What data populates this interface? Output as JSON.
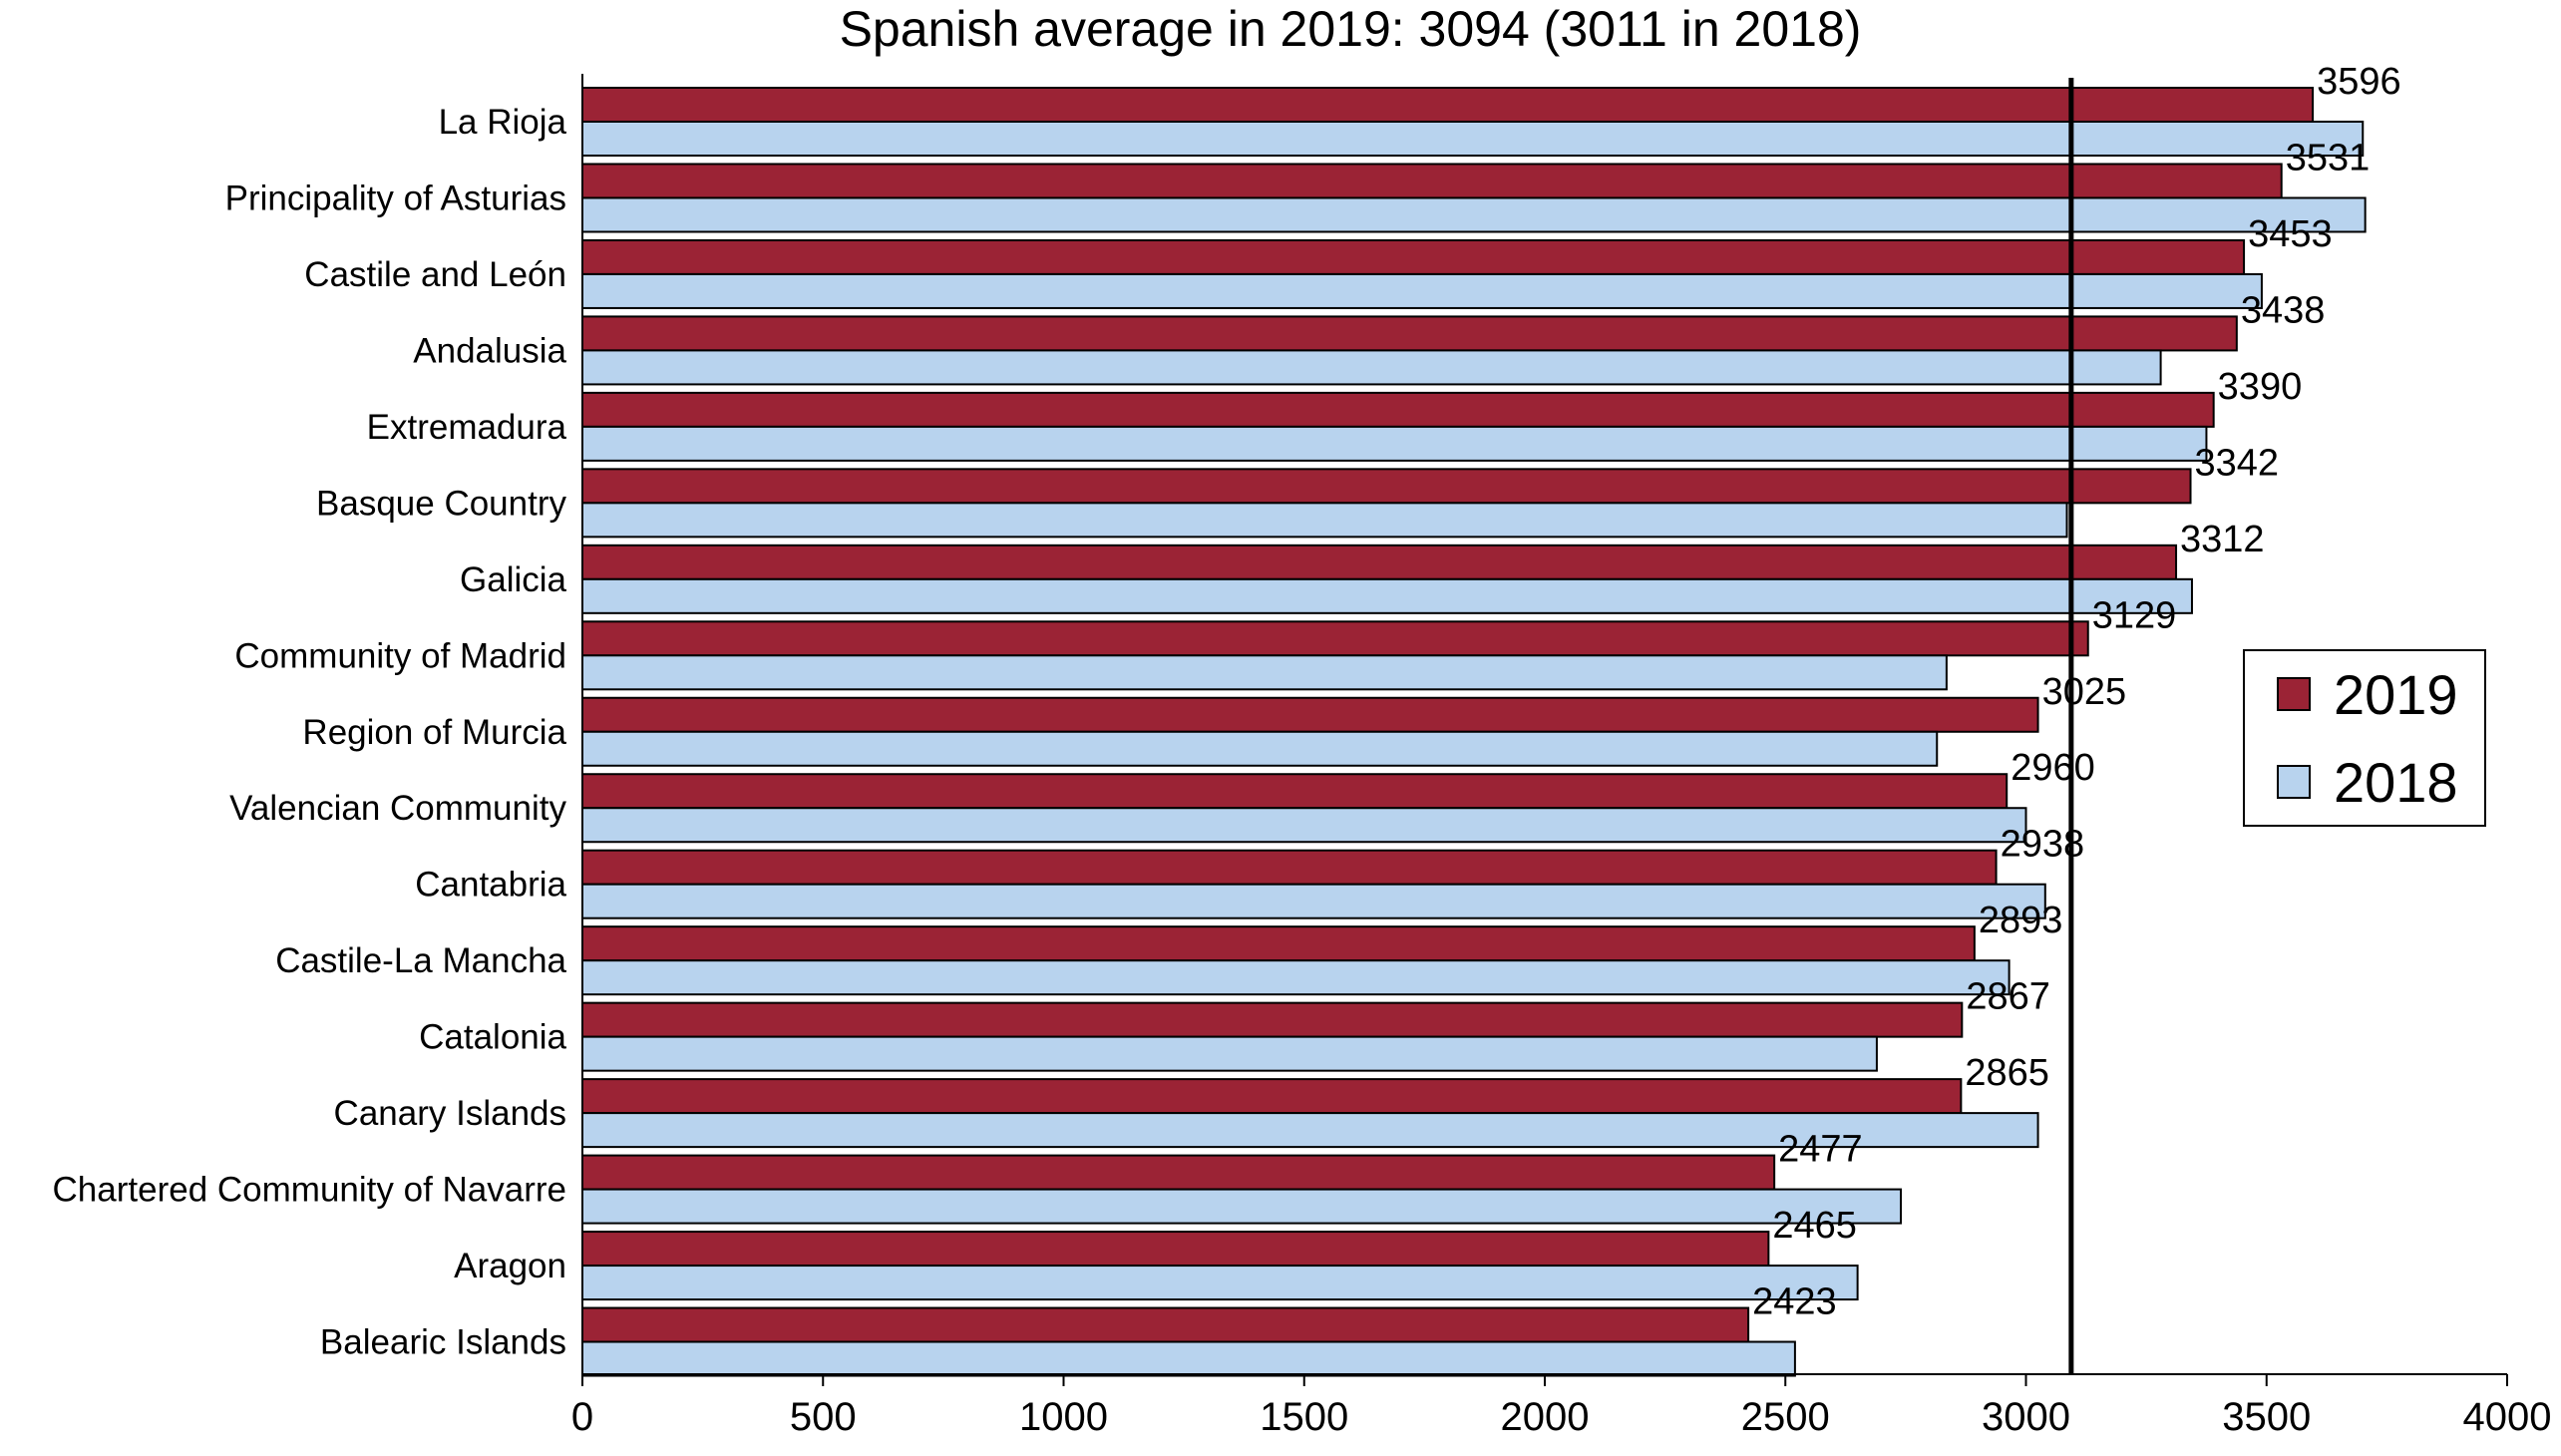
{
  "chart_data": {
    "type": "bar",
    "orientation": "horizontal",
    "title": "Spanish average in 2019: 3094 (3011 in 2018)",
    "xlabel": "",
    "ylabel": "",
    "xlim": [
      0,
      4000
    ],
    "xticks": [
      0,
      500,
      1000,
      1500,
      2000,
      2500,
      3000,
      3500,
      4000
    ],
    "reference_line": 3094,
    "legend_position": "right",
    "categories": [
      "La Rioja",
      "Principality of Asturias",
      "Castile and León",
      "Andalusia",
      "Extremadura",
      "Basque Country",
      "Galicia",
      "Community of Madrid",
      "Region of Murcia",
      "Valencian Community",
      "Cantabria",
      "Castile-La Mancha",
      "Catalonia",
      "Canary Islands",
      "Chartered Community of Navarre",
      "Aragon",
      "Balearic Islands"
    ],
    "series": [
      {
        "name": "2019",
        "color": "#9b2335",
        "values": [
          3596,
          3531,
          3453,
          3438,
          3390,
          3342,
          3312,
          3129,
          3025,
          2960,
          2938,
          2893,
          2867,
          2865,
          2477,
          2465,
          2423
        ],
        "labels": [
          "3596",
          "3531",
          "3453",
          "3438",
          "3390",
          "3342",
          "3312",
          "3129",
          "3025",
          "2960",
          "2938",
          "2893",
          "2867",
          "2865",
          "2477",
          "2465",
          "2423"
        ]
      },
      {
        "name": "2018",
        "color": "#b8d3ee",
        "values": [
          3700,
          3705,
          3490,
          3280,
          3375,
          3085,
          3345,
          2835,
          2815,
          3000,
          3040,
          2965,
          2690,
          3025,
          2740,
          2650,
          2520
        ]
      }
    ]
  }
}
